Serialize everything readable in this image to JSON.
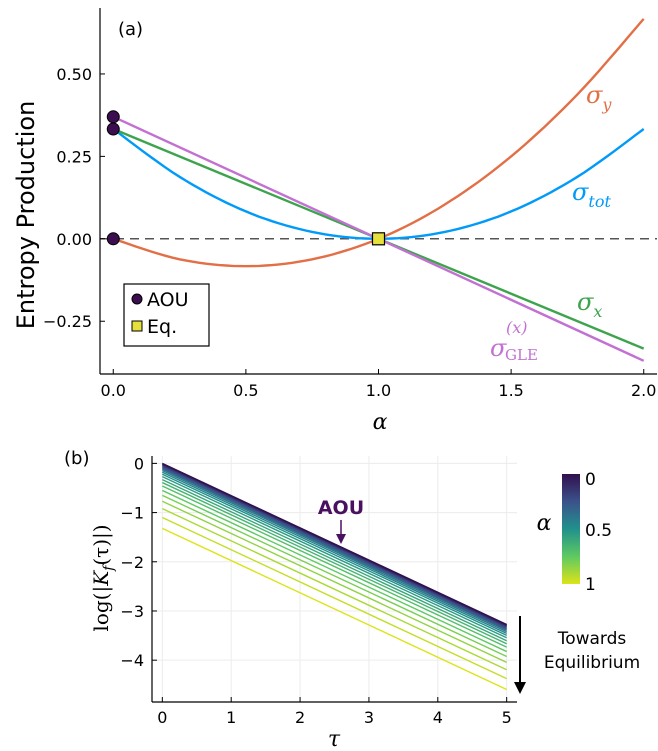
{
  "chart_data": [
    {
      "panel": "(a)",
      "type": "line",
      "xlabel": "α",
      "ylabel": "Entropy Production",
      "xlim": [
        -0.05,
        2.05
      ],
      "ylim": [
        -0.41,
        0.7
      ],
      "xticks": [
        "0.0",
        "0.5",
        "1.0",
        "1.5",
        "2.0"
      ],
      "yticks": [
        "-0.25",
        "0.00",
        "0.25",
        "0.50"
      ],
      "grid": false,
      "series": [
        {
          "name": "σ_y",
          "color": "#e26f46",
          "x": [
            0,
            0.25,
            0.5,
            0.75,
            1.0,
            1.25,
            1.5,
            1.75,
            2.0
          ],
          "y": [
            0.0,
            -0.062,
            -0.083,
            -0.062,
            0.0,
            0.104,
            0.25,
            0.438,
            0.667
          ]
        },
        {
          "name": "σ_tot",
          "color": "#009af9",
          "x": [
            0,
            0.25,
            0.5,
            0.75,
            1.0,
            1.25,
            1.5,
            1.75,
            2.0
          ],
          "y": [
            0.333,
            0.188,
            0.083,
            0.021,
            0.0,
            0.021,
            0.083,
            0.188,
            0.333
          ]
        },
        {
          "name": "σ_x",
          "color": "#3da44d",
          "x": [
            0,
            1.0,
            2.0
          ],
          "y": [
            0.333,
            0.0,
            -0.333
          ]
        },
        {
          "name": "σ_GLE^(x)",
          "color": "#c271d2",
          "x": [
            0,
            1.0,
            2.0
          ],
          "y": [
            0.37,
            0.0,
            -0.37
          ]
        }
      ],
      "markers": [
        {
          "group": "AOU",
          "x": 0,
          "y": 0.37
        },
        {
          "group": "AOU",
          "x": 0,
          "y": 0.333
        },
        {
          "group": "AOU",
          "x": 0,
          "y": 0.0
        },
        {
          "group": "Eq.",
          "x": 1.0,
          "y": 0.0
        }
      ],
      "reference_line": {
        "y": 0,
        "style": "dashed"
      },
      "legend": {
        "placement": "bottom-left",
        "entries": [
          {
            "label": "AOU",
            "marker": "circle",
            "color": "#3b0f4f"
          },
          {
            "label": "Eq.",
            "marker": "square",
            "color": "#e5e03b"
          }
        ]
      },
      "series_labels": {
        "sy_base": "σ",
        "sy_sub": "y",
        "stot_base": "σ",
        "stot_sub": "tot",
        "sx_base": "σ",
        "sx_sub": "x",
        "sgle_base": "σ",
        "sgle_sub": "GLE",
        "sgle_sup": "(x)"
      }
    },
    {
      "panel": "(b)",
      "type": "line",
      "xlabel": "τ",
      "ylabel": "log(|K_f(τ)|)",
      "ylabel_parts": {
        "pre": "log(|",
        "base": "K",
        "sub": "f",
        "post": "(τ)|)"
      },
      "xlim": [
        -0.15,
        5.15
      ],
      "ylim": [
        -4.85,
        0.15
      ],
      "xticks": [
        "0",
        "1",
        "2",
        "3",
        "4",
        "5"
      ],
      "yticks": [
        "0",
        "-1",
        "-2",
        "-3",
        "-4"
      ],
      "grid": true,
      "slope": -0.655,
      "alpha_values": [
        0.0,
        0.05,
        0.1,
        0.15,
        0.2,
        0.25,
        0.3,
        0.35,
        0.4,
        0.45,
        0.5,
        0.55,
        0.6,
        0.65,
        0.7,
        0.75,
        0.8,
        0.85,
        0.9,
        0.95,
        1.0
      ],
      "intercepts": [
        0.0,
        -0.01,
        -0.02,
        -0.035,
        -0.05,
        -0.07,
        -0.09,
        -0.115,
        -0.145,
        -0.18,
        -0.22,
        -0.27,
        -0.33,
        -0.39,
        -0.46,
        -0.55,
        -0.65,
        -0.77,
        -0.92,
        -1.1,
        -1.32
      ],
      "annotation": {
        "text": "AOU",
        "x": 2.6,
        "y": -1.05
      },
      "arrow_label_1": "Towards",
      "arrow_label_2": "Equilibrium",
      "colorbar": {
        "label": "α",
        "ticks": [
          "0",
          "0.5",
          "1"
        ],
        "range": [
          0,
          1
        ]
      }
    }
  ]
}
